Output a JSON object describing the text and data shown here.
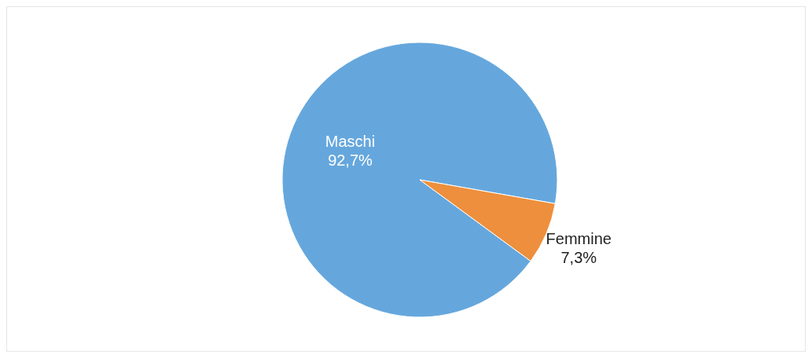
{
  "chart_data": {
    "type": "pie",
    "categories": [
      "Maschi",
      "Femmine"
    ],
    "values": [
      92.7,
      7.3
    ],
    "colors": [
      "#65a7dd",
      "#ed8f3c"
    ],
    "value_labels": [
      "92,7%",
      "7,3%"
    ],
    "legend": false
  }
}
